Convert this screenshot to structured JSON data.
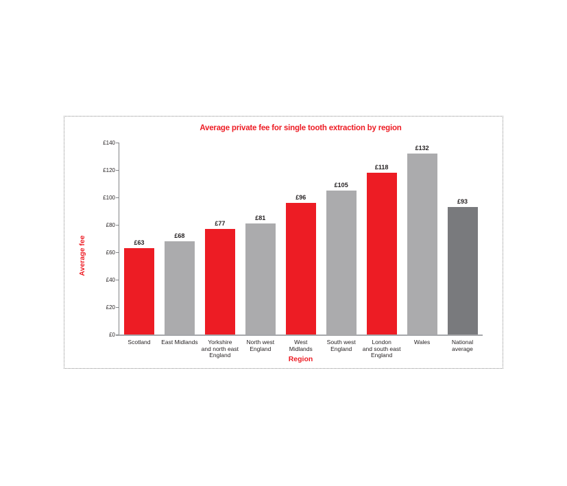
{
  "chart_data": {
    "type": "bar",
    "title": "Average private fee for single tooth extraction by region",
    "xlabel": "Region",
    "ylabel": "Average fee",
    "categories": [
      "Scotland",
      "East Midlands",
      "Yorkshire and north east England",
      "North west England",
      "West Midlands",
      "South west England",
      "London and south east England",
      "Wales",
      "National average"
    ],
    "category_lines": [
      [
        "Scotland"
      ],
      [
        "East Midlands"
      ],
      [
        "Yorkshire",
        "and north east",
        "England"
      ],
      [
        "North west",
        "England"
      ],
      [
        "West",
        "Midlands"
      ],
      [
        "South west",
        "England"
      ],
      [
        "London",
        "and south east",
        "England"
      ],
      [
        "Wales"
      ],
      [
        "National",
        "average"
      ]
    ],
    "values": [
      63,
      68,
      77,
      81,
      96,
      105,
      118,
      132,
      93
    ],
    "value_labels": [
      "£63",
      "£68",
      "£77",
      "£81",
      "£96",
      "£105",
      "£118",
      "£132",
      "£93"
    ],
    "bar_colors": [
      "#ed1c24",
      "#ababad",
      "#ed1c24",
      "#ababad",
      "#ed1c24",
      "#ababad",
      "#ed1c24",
      "#ababad",
      "#797a7d"
    ],
    "ylim": [
      0,
      140
    ],
    "ytick_step": 20,
    "ytick_labels": [
      "£0",
      "£20",
      "£40",
      "£60",
      "£80",
      "£100",
      "£120",
      "£140"
    ],
    "grid": false,
    "legend": "none",
    "colors": {
      "accent_red": "#ed1c24",
      "light_gray_bar": "#ababad",
      "dark_gray_bar": "#797a7d",
      "axis": "#808285",
      "baseline": "#a5a7aa",
      "text": "#231f20"
    }
  }
}
